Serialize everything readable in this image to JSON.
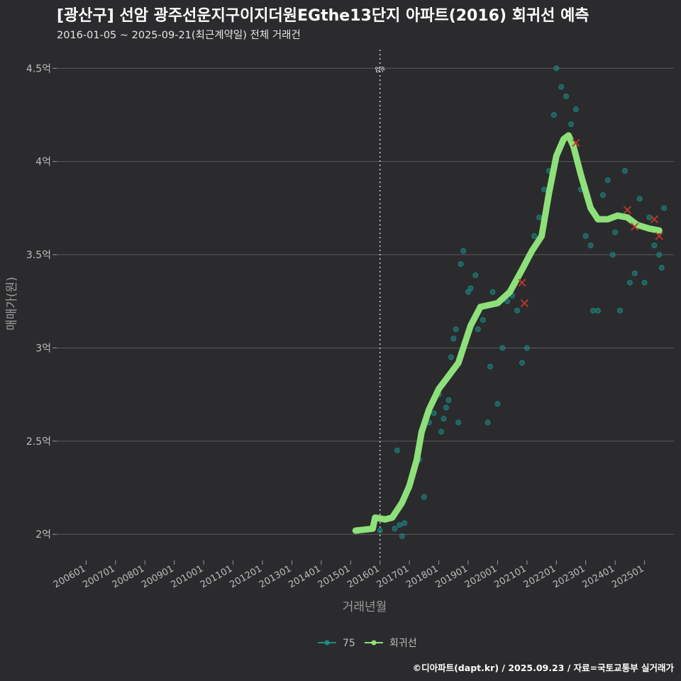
{
  "chart_data": {
    "type": "scatter",
    "title": "[광산구] 선암 광주선운지구이지더원EGthe13단지 아파트(2016) 회귀선 예측",
    "subtitle": "2016-01-05 ~ 2025-09-21(최근계약일) 전체 거래건",
    "xlabel": "거래년월",
    "ylabel": "매매가(원)",
    "xlim": [
      "2005-01",
      "2026-01"
    ],
    "ylim": [
      1.86,
      4.6
    ],
    "yticks": [
      {
        "value": 2.0,
        "label": "2억"
      },
      {
        "value": 2.5,
        "label": "2.5억"
      },
      {
        "value": 3.0,
        "label": "3억"
      },
      {
        "value": 3.5,
        "label": "3.5억"
      },
      {
        "value": 4.0,
        "label": "4억"
      },
      {
        "value": 4.5,
        "label": "4.5억"
      }
    ],
    "xticks": [
      "2006-01",
      "2007-01",
      "2008-01",
      "2009-01",
      "2010-01",
      "2011-01",
      "2012-01",
      "2013-01",
      "2014-01",
      "2015-01",
      "2016-01",
      "2017-01",
      "2018-01",
      "2019-01",
      "2020-01",
      "2021-01",
      "2022-01",
      "2023-01",
      "2024-01",
      "2025-01"
    ],
    "xtick_labels": [
      "200601",
      "200701",
      "200801",
      "200901",
      "201001",
      "201101",
      "201201",
      "201301",
      "201401",
      "201501",
      "201601",
      "201701",
      "201801",
      "201901",
      "202001",
      "202101",
      "202201",
      "202301",
      "202401",
      "202501"
    ],
    "vline": {
      "x": "2016-01",
      "label": "입주"
    },
    "grid": true,
    "legend": {
      "position": "bottom",
      "entries": [
        {
          "label": "75",
          "color": "#1c8c86"
        },
        {
          "label": "회귀선",
          "color": "#8ee07a"
        }
      ]
    },
    "colors": {
      "background": "#2b2b2d",
      "points": "#1c8c86",
      "regression": "#8ee07a",
      "outlier": "#c0392b",
      "grid": "#5a5a5c",
      "text": "#bdbdbd"
    },
    "regression": [
      {
        "x": "2015-03",
        "y": 2.02
      },
      {
        "x": "2015-10",
        "y": 2.03
      },
      {
        "x": "2015-11",
        "y": 2.09
      },
      {
        "x": "2016-03",
        "y": 2.08
      },
      {
        "x": "2016-06",
        "y": 2.09
      },
      {
        "x": "2016-10",
        "y": 2.17
      },
      {
        "x": "2017-01",
        "y": 2.26
      },
      {
        "x": "2017-04",
        "y": 2.4
      },
      {
        "x": "2017-06",
        "y": 2.55
      },
      {
        "x": "2017-09",
        "y": 2.67
      },
      {
        "x": "2018-01",
        "y": 2.78
      },
      {
        "x": "2018-05",
        "y": 2.85
      },
      {
        "x": "2018-09",
        "y": 2.92
      },
      {
        "x": "2018-11",
        "y": 3.0
      },
      {
        "x": "2019-02",
        "y": 3.12
      },
      {
        "x": "2019-06",
        "y": 3.22
      },
      {
        "x": "2020-01",
        "y": 3.24
      },
      {
        "x": "2020-06",
        "y": 3.3
      },
      {
        "x": "2020-11",
        "y": 3.42
      },
      {
        "x": "2021-03",
        "y": 3.52
      },
      {
        "x": "2021-07",
        "y": 3.6
      },
      {
        "x": "2021-10",
        "y": 3.83
      },
      {
        "x": "2022-01",
        "y": 4.03
      },
      {
        "x": "2022-04",
        "y": 4.12
      },
      {
        "x": "2022-06",
        "y": 4.14
      },
      {
        "x": "2022-08",
        "y": 4.08
      },
      {
        "x": "2022-11",
        "y": 3.93
      },
      {
        "x": "2023-03",
        "y": 3.75
      },
      {
        "x": "2023-06",
        "y": 3.69
      },
      {
        "x": "2023-10",
        "y": 3.69
      },
      {
        "x": "2024-02",
        "y": 3.71
      },
      {
        "x": "2024-06",
        "y": 3.7
      },
      {
        "x": "2024-10",
        "y": 3.66
      },
      {
        "x": "2025-03",
        "y": 3.64
      },
      {
        "x": "2025-07",
        "y": 3.63
      }
    ],
    "points": [
      {
        "x": "2016-01",
        "y": 2.02
      },
      {
        "x": "2016-07",
        "y": 2.03
      },
      {
        "x": "2016-08",
        "y": 2.45
      },
      {
        "x": "2016-09",
        "y": 2.05
      },
      {
        "x": "2016-10",
        "y": 1.99
      },
      {
        "x": "2016-11",
        "y": 2.06
      },
      {
        "x": "2017-01",
        "y": 2.25
      },
      {
        "x": "2017-05",
        "y": 2.4
      },
      {
        "x": "2017-07",
        "y": 2.2
      },
      {
        "x": "2017-09",
        "y": 2.6
      },
      {
        "x": "2017-10",
        "y": 2.7
      },
      {
        "x": "2017-11",
        "y": 2.65
      },
      {
        "x": "2018-01",
        "y": 2.75
      },
      {
        "x": "2018-02",
        "y": 2.55
      },
      {
        "x": "2018-03",
        "y": 2.62
      },
      {
        "x": "2018-04",
        "y": 2.68
      },
      {
        "x": "2018-05",
        "y": 2.72
      },
      {
        "x": "2018-06",
        "y": 2.95
      },
      {
        "x": "2018-07",
        "y": 3.05
      },
      {
        "x": "2018-08",
        "y": 3.1
      },
      {
        "x": "2018-09",
        "y": 2.6
      },
      {
        "x": "2018-10",
        "y": 3.45
      },
      {
        "x": "2018-11",
        "y": 3.52
      },
      {
        "x": "2019-01",
        "y": 3.3
      },
      {
        "x": "2019-02",
        "y": 3.32
      },
      {
        "x": "2019-04",
        "y": 3.39
      },
      {
        "x": "2019-05",
        "y": 3.1
      },
      {
        "x": "2019-07",
        "y": 3.15
      },
      {
        "x": "2019-09",
        "y": 2.6
      },
      {
        "x": "2019-10",
        "y": 2.9
      },
      {
        "x": "2019-11",
        "y": 3.3
      },
      {
        "x": "2020-01",
        "y": 2.7
      },
      {
        "x": "2020-03",
        "y": 3.0
      },
      {
        "x": "2020-05",
        "y": 3.25
      },
      {
        "x": "2020-07",
        "y": 3.28
      },
      {
        "x": "2020-09",
        "y": 3.2
      },
      {
        "x": "2020-11",
        "y": 2.92
      },
      {
        "x": "2021-01",
        "y": 3.0
      },
      {
        "x": "2021-02",
        "y": 3.5
      },
      {
        "x": "2021-04",
        "y": 3.6
      },
      {
        "x": "2021-06",
        "y": 3.7
      },
      {
        "x": "2021-08",
        "y": 3.85
      },
      {
        "x": "2021-10",
        "y": 3.95
      },
      {
        "x": "2021-12",
        "y": 4.25
      },
      {
        "x": "2022-01",
        "y": 4.5
      },
      {
        "x": "2022-03",
        "y": 4.4
      },
      {
        "x": "2022-05",
        "y": 4.35
      },
      {
        "x": "2022-07",
        "y": 4.2
      },
      {
        "x": "2022-09",
        "y": 4.28
      },
      {
        "x": "2022-11",
        "y": 3.85
      },
      {
        "x": "2023-01",
        "y": 3.6
      },
      {
        "x": "2023-03",
        "y": 3.55
      },
      {
        "x": "2023-04",
        "y": 3.2
      },
      {
        "x": "2023-06",
        "y": 3.2
      },
      {
        "x": "2023-08",
        "y": 3.82
      },
      {
        "x": "2023-10",
        "y": 3.9
      },
      {
        "x": "2023-12",
        "y": 3.5
      },
      {
        "x": "2024-01",
        "y": 3.62
      },
      {
        "x": "2024-03",
        "y": 3.2
      },
      {
        "x": "2024-05",
        "y": 3.95
      },
      {
        "x": "2024-07",
        "y": 3.35
      },
      {
        "x": "2024-09",
        "y": 3.4
      },
      {
        "x": "2024-11",
        "y": 3.8
      },
      {
        "x": "2025-01",
        "y": 3.35
      },
      {
        "x": "2025-03",
        "y": 3.7
      },
      {
        "x": "2025-05",
        "y": 3.55
      },
      {
        "x": "2025-07",
        "y": 3.5
      },
      {
        "x": "2025-08",
        "y": 3.43
      },
      {
        "x": "2025-09",
        "y": 3.75
      }
    ],
    "outliers": [
      {
        "x": "2020-11",
        "y": 3.35
      },
      {
        "x": "2020-12",
        "y": 3.24
      },
      {
        "x": "2022-09",
        "y": 4.1
      },
      {
        "x": "2024-06",
        "y": 3.74
      },
      {
        "x": "2024-09",
        "y": 3.65
      },
      {
        "x": "2025-05",
        "y": 3.69
      },
      {
        "x": "2025-07",
        "y": 3.6
      }
    ]
  },
  "footer": {
    "credit": "©디아파트(dapt.kr) / 2025.09.23 / 자료=국토교통부 실거래가"
  }
}
